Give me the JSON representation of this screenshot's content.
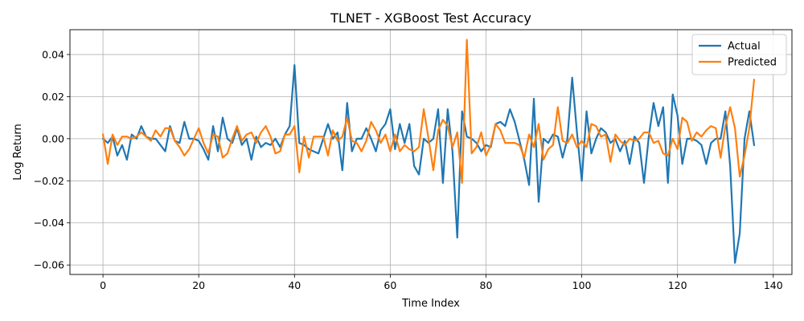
{
  "chart_data": {
    "type": "line",
    "title": "TLNET - XGBoost Test Accuracy",
    "xlabel": "Time Index",
    "ylabel": "Log Return",
    "xlim": [
      -6.9,
      143.9
    ],
    "ylim": [
      -0.0645,
      0.0518
    ],
    "xticks": [
      0,
      20,
      40,
      60,
      80,
      100,
      120,
      140
    ],
    "yticks": [
      -0.06,
      -0.04,
      -0.02,
      0.0,
      0.02,
      0.04
    ],
    "ytick_labels": [
      "−0.06",
      "−0.04",
      "−0.02",
      "0.00",
      "0.02",
      "0.04"
    ],
    "grid": true,
    "legend_position": "top-right",
    "series": [
      {
        "name": "Actual",
        "color": "#1f77b4",
        "values": [
          0.0,
          -0.002,
          0.001,
          -0.008,
          -0.003,
          -0.01,
          0.002,
          0.0,
          0.006,
          0.001,
          0.0,
          0.0,
          -0.003,
          -0.006,
          0.006,
          -0.001,
          -0.002,
          0.008,
          0.0,
          0.0,
          -0.001,
          -0.005,
          -0.01,
          0.006,
          -0.006,
          0.01,
          0.0,
          -0.002,
          0.005,
          -0.003,
          0.0,
          -0.01,
          0.001,
          -0.004,
          -0.002,
          -0.003,
          0.0,
          -0.004,
          0.002,
          0.006,
          0.035,
          -0.002,
          -0.003,
          -0.005,
          -0.006,
          -0.007,
          0.0,
          0.007,
          0.0,
          0.003,
          -0.015,
          0.017,
          -0.006,
          0.0,
          0.0,
          0.005,
          0.0,
          -0.006,
          0.004,
          0.007,
          0.014,
          -0.005,
          0.007,
          -0.002,
          0.007,
          -0.013,
          -0.017,
          0.0,
          -0.002,
          0.0,
          0.014,
          -0.021,
          0.014,
          -0.006,
          -0.047,
          0.013,
          0.001,
          0.0,
          -0.002,
          -0.006,
          -0.003,
          -0.004,
          0.007,
          0.008,
          0.006,
          0.014,
          0.008,
          -0.001,
          -0.01,
          -0.022,
          0.019,
          -0.03,
          0.0,
          -0.002,
          0.002,
          0.001,
          -0.009,
          0.0,
          0.029,
          0.003,
          -0.02,
          0.013,
          -0.007,
          0.0,
          0.005,
          0.003,
          -0.002,
          0.0,
          -0.006,
          -0.001,
          -0.012,
          0.001,
          -0.002,
          -0.021,
          0.001,
          0.017,
          0.006,
          0.015,
          -0.021,
          0.021,
          0.011,
          -0.012,
          0.0,
          0.0,
          -0.001,
          -0.003,
          -0.012,
          -0.002,
          0.0,
          0.0,
          0.013,
          -0.013,
          -0.059,
          -0.045,
          0.0,
          0.013,
          -0.003
        ]
      },
      {
        "name": "Predicted",
        "color": "#ff7f0e",
        "values": [
          0.002,
          -0.012,
          0.002,
          -0.003,
          0.001,
          0.001,
          0.0,
          0.001,
          0.003,
          0.001,
          -0.001,
          0.004,
          0.001,
          0.005,
          0.005,
          -0.001,
          -0.004,
          -0.008,
          -0.005,
          0.0,
          0.005,
          -0.002,
          -0.007,
          0.002,
          0.001,
          -0.009,
          -0.007,
          0.0,
          0.006,
          -0.001,
          0.002,
          0.003,
          -0.002,
          0.003,
          0.006,
          0.001,
          -0.007,
          -0.006,
          0.002,
          0.002,
          0.006,
          -0.016,
          0.001,
          -0.009,
          0.001,
          0.001,
          0.001,
          -0.008,
          0.004,
          -0.001,
          0.001,
          0.01,
          -0.001,
          -0.002,
          -0.006,
          -0.001,
          0.008,
          0.004,
          -0.002,
          0.002,
          -0.006,
          0.002,
          -0.006,
          -0.003,
          -0.005,
          -0.006,
          -0.004,
          0.014,
          0.0,
          -0.015,
          0.004,
          0.009,
          0.006,
          -0.004,
          0.003,
          -0.021,
          0.047,
          -0.007,
          -0.004,
          0.003,
          -0.008,
          -0.003,
          0.007,
          0.004,
          -0.002,
          -0.002,
          -0.002,
          -0.003,
          -0.009,
          0.002,
          -0.004,
          0.007,
          -0.01,
          -0.005,
          -0.003,
          0.015,
          -0.001,
          -0.002,
          0.002,
          -0.004,
          -0.001,
          -0.004,
          0.007,
          0.006,
          0.001,
          0.002,
          -0.011,
          0.002,
          -0.001,
          -0.003,
          0.0,
          -0.001,
          0.0,
          0.003,
          0.003,
          -0.002,
          -0.001,
          -0.007,
          -0.008,
          0.0,
          -0.005,
          0.01,
          0.008,
          -0.001,
          0.003,
          0.001,
          0.004,
          0.006,
          0.005,
          -0.009,
          0.006,
          0.015,
          0.005,
          -0.018,
          -0.008,
          0.005,
          0.028
        ]
      }
    ]
  }
}
